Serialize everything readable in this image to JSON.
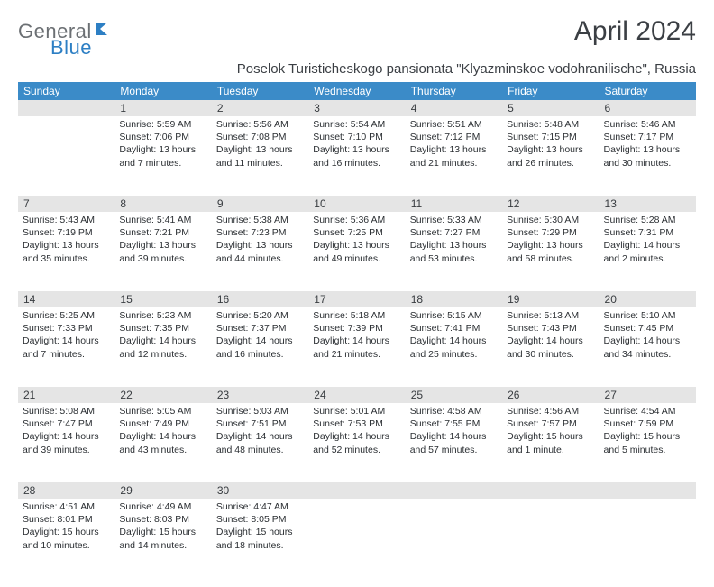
{
  "logo": {
    "part1": "General",
    "part2": "Blue"
  },
  "title": "April 2024",
  "subtitle": "Poselok Turisticheskogo pansionata \"Klyazminskoe vodohranilische\", Russia",
  "colors": {
    "header_bg": "#3b8bc8",
    "header_fg": "#ffffff",
    "daynum_bg": "#e5e5e5",
    "text": "#2b2f33",
    "title": "#3b3f44",
    "logo_gray": "#6b6f73",
    "logo_blue": "#2d7fc4"
  },
  "weekdays": [
    "Sunday",
    "Monday",
    "Tuesday",
    "Wednesday",
    "Thursday",
    "Friday",
    "Saturday"
  ],
  "weeks": [
    [
      null,
      {
        "n": "1",
        "sr": "Sunrise: 5:59 AM",
        "ss": "Sunset: 7:06 PM",
        "d1": "Daylight: 13 hours",
        "d2": "and 7 minutes."
      },
      {
        "n": "2",
        "sr": "Sunrise: 5:56 AM",
        "ss": "Sunset: 7:08 PM",
        "d1": "Daylight: 13 hours",
        "d2": "and 11 minutes."
      },
      {
        "n": "3",
        "sr": "Sunrise: 5:54 AM",
        "ss": "Sunset: 7:10 PM",
        "d1": "Daylight: 13 hours",
        "d2": "and 16 minutes."
      },
      {
        "n": "4",
        "sr": "Sunrise: 5:51 AM",
        "ss": "Sunset: 7:12 PM",
        "d1": "Daylight: 13 hours",
        "d2": "and 21 minutes."
      },
      {
        "n": "5",
        "sr": "Sunrise: 5:48 AM",
        "ss": "Sunset: 7:15 PM",
        "d1": "Daylight: 13 hours",
        "d2": "and 26 minutes."
      },
      {
        "n": "6",
        "sr": "Sunrise: 5:46 AM",
        "ss": "Sunset: 7:17 PM",
        "d1": "Daylight: 13 hours",
        "d2": "and 30 minutes."
      }
    ],
    [
      {
        "n": "7",
        "sr": "Sunrise: 5:43 AM",
        "ss": "Sunset: 7:19 PM",
        "d1": "Daylight: 13 hours",
        "d2": "and 35 minutes."
      },
      {
        "n": "8",
        "sr": "Sunrise: 5:41 AM",
        "ss": "Sunset: 7:21 PM",
        "d1": "Daylight: 13 hours",
        "d2": "and 39 minutes."
      },
      {
        "n": "9",
        "sr": "Sunrise: 5:38 AM",
        "ss": "Sunset: 7:23 PM",
        "d1": "Daylight: 13 hours",
        "d2": "and 44 minutes."
      },
      {
        "n": "10",
        "sr": "Sunrise: 5:36 AM",
        "ss": "Sunset: 7:25 PM",
        "d1": "Daylight: 13 hours",
        "d2": "and 49 minutes."
      },
      {
        "n": "11",
        "sr": "Sunrise: 5:33 AM",
        "ss": "Sunset: 7:27 PM",
        "d1": "Daylight: 13 hours",
        "d2": "and 53 minutes."
      },
      {
        "n": "12",
        "sr": "Sunrise: 5:30 AM",
        "ss": "Sunset: 7:29 PM",
        "d1": "Daylight: 13 hours",
        "d2": "and 58 minutes."
      },
      {
        "n": "13",
        "sr": "Sunrise: 5:28 AM",
        "ss": "Sunset: 7:31 PM",
        "d1": "Daylight: 14 hours",
        "d2": "and 2 minutes."
      }
    ],
    [
      {
        "n": "14",
        "sr": "Sunrise: 5:25 AM",
        "ss": "Sunset: 7:33 PM",
        "d1": "Daylight: 14 hours",
        "d2": "and 7 minutes."
      },
      {
        "n": "15",
        "sr": "Sunrise: 5:23 AM",
        "ss": "Sunset: 7:35 PM",
        "d1": "Daylight: 14 hours",
        "d2": "and 12 minutes."
      },
      {
        "n": "16",
        "sr": "Sunrise: 5:20 AM",
        "ss": "Sunset: 7:37 PM",
        "d1": "Daylight: 14 hours",
        "d2": "and 16 minutes."
      },
      {
        "n": "17",
        "sr": "Sunrise: 5:18 AM",
        "ss": "Sunset: 7:39 PM",
        "d1": "Daylight: 14 hours",
        "d2": "and 21 minutes."
      },
      {
        "n": "18",
        "sr": "Sunrise: 5:15 AM",
        "ss": "Sunset: 7:41 PM",
        "d1": "Daylight: 14 hours",
        "d2": "and 25 minutes."
      },
      {
        "n": "19",
        "sr": "Sunrise: 5:13 AM",
        "ss": "Sunset: 7:43 PM",
        "d1": "Daylight: 14 hours",
        "d2": "and 30 minutes."
      },
      {
        "n": "20",
        "sr": "Sunrise: 5:10 AM",
        "ss": "Sunset: 7:45 PM",
        "d1": "Daylight: 14 hours",
        "d2": "and 34 minutes."
      }
    ],
    [
      {
        "n": "21",
        "sr": "Sunrise: 5:08 AM",
        "ss": "Sunset: 7:47 PM",
        "d1": "Daylight: 14 hours",
        "d2": "and 39 minutes."
      },
      {
        "n": "22",
        "sr": "Sunrise: 5:05 AM",
        "ss": "Sunset: 7:49 PM",
        "d1": "Daylight: 14 hours",
        "d2": "and 43 minutes."
      },
      {
        "n": "23",
        "sr": "Sunrise: 5:03 AM",
        "ss": "Sunset: 7:51 PM",
        "d1": "Daylight: 14 hours",
        "d2": "and 48 minutes."
      },
      {
        "n": "24",
        "sr": "Sunrise: 5:01 AM",
        "ss": "Sunset: 7:53 PM",
        "d1": "Daylight: 14 hours",
        "d2": "and 52 minutes."
      },
      {
        "n": "25",
        "sr": "Sunrise: 4:58 AM",
        "ss": "Sunset: 7:55 PM",
        "d1": "Daylight: 14 hours",
        "d2": "and 57 minutes."
      },
      {
        "n": "26",
        "sr": "Sunrise: 4:56 AM",
        "ss": "Sunset: 7:57 PM",
        "d1": "Daylight: 15 hours",
        "d2": "and 1 minute."
      },
      {
        "n": "27",
        "sr": "Sunrise: 4:54 AM",
        "ss": "Sunset: 7:59 PM",
        "d1": "Daylight: 15 hours",
        "d2": "and 5 minutes."
      }
    ],
    [
      {
        "n": "28",
        "sr": "Sunrise: 4:51 AM",
        "ss": "Sunset: 8:01 PM",
        "d1": "Daylight: 15 hours",
        "d2": "and 10 minutes."
      },
      {
        "n": "29",
        "sr": "Sunrise: 4:49 AM",
        "ss": "Sunset: 8:03 PM",
        "d1": "Daylight: 15 hours",
        "d2": "and 14 minutes."
      },
      {
        "n": "30",
        "sr": "Sunrise: 4:47 AM",
        "ss": "Sunset: 8:05 PM",
        "d1": "Daylight: 15 hours",
        "d2": "and 18 minutes."
      },
      null,
      null,
      null,
      null
    ]
  ]
}
